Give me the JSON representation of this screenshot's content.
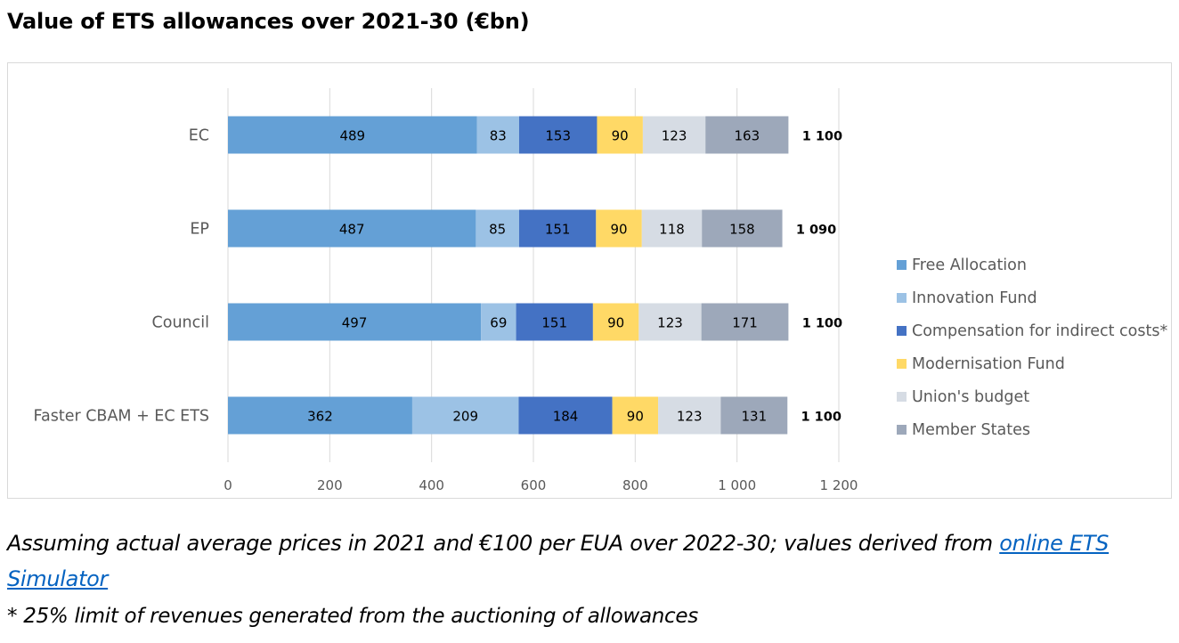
{
  "title": "Value of ETS allowances over 2021-30 (€bn)",
  "notes": {
    "line1_text": "Assuming actual average prices in 2021 and €100 per EUA over 2022-30; values derived from ",
    "link_text": "online ETS Simulator",
    "line2_text": "* 25% limit of revenues generated from the auctioning of allowances"
  },
  "chart_data": {
    "type": "bar",
    "orientation": "horizontal",
    "stacked": true,
    "categories": [
      "EC",
      "EP",
      "Council",
      "Faster CBAM + EC ETS"
    ],
    "series": [
      {
        "name": "Free Allocation",
        "color": "#64a0d6",
        "values": [
          489,
          487,
          497,
          362
        ]
      },
      {
        "name": "Innovation Fund",
        "color": "#9cc2e5",
        "values": [
          83,
          85,
          69,
          209
        ]
      },
      {
        "name": "Compensation for indirect costs*",
        "color": "#4472c4",
        "values": [
          153,
          151,
          151,
          184
        ]
      },
      {
        "name": "Modernisation Fund",
        "color": "#ffd966",
        "values": [
          90,
          90,
          90,
          90
        ]
      },
      {
        "name": "Union's budget",
        "color": "#d6dce4",
        "values": [
          123,
          118,
          123,
          123
        ]
      },
      {
        "name": "Member States",
        "color": "#9da8ba",
        "values": [
          163,
          158,
          171,
          131
        ]
      }
    ],
    "totals": [
      "1 100",
      "1 090",
      "1 100",
      "1 100"
    ],
    "xlim": [
      0,
      1200
    ],
    "xticks": [
      "0",
      "200",
      "400",
      "600",
      "800",
      "1 000",
      "1 200"
    ],
    "grid": true,
    "legend_position": "right"
  }
}
